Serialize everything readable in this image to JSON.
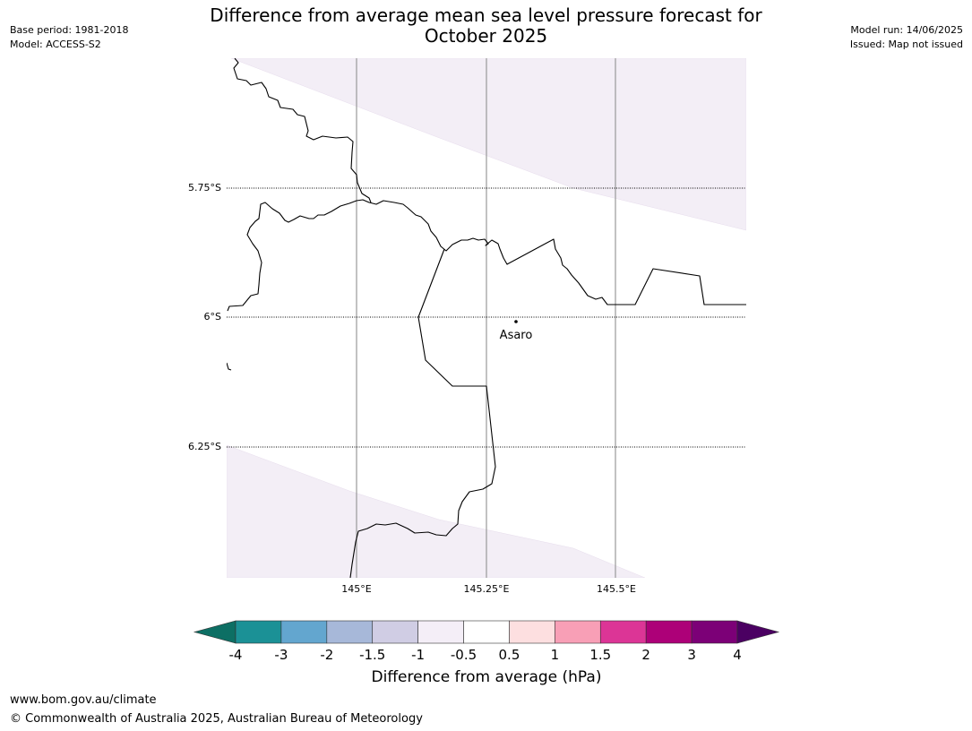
{
  "header": {
    "title_line1": "Difference from average mean sea level pressure forecast for",
    "title_line2": "October 2025",
    "base_period": "Base period: 1981-2018",
    "model": "Model: ACCESS-S2",
    "model_run": "Model run: 14/06/2025",
    "issued": "Issued: Map not issued"
  },
  "map": {
    "lat_labels": [
      "5.75°S",
      "6°S",
      "6.25°S"
    ],
    "lon_labels": [
      "145°E",
      "145.25°E",
      "145.5°E"
    ],
    "place": {
      "name": "Asaro"
    },
    "shading_color": "#f3eef6",
    "grid_color": "#999999"
  },
  "legend": {
    "label": "Difference from average (hPa)",
    "ticks": [
      "-4",
      "-3",
      "-2",
      "-1.5",
      "-1",
      "-0.5",
      "0.5",
      "1",
      "1.5",
      "2",
      "3",
      "4"
    ],
    "colors": [
      "#0d6f64",
      "#1b9196",
      "#63a6cf",
      "#a7b8d9",
      "#d0cde4",
      "#f4eef7",
      "#ffffff",
      "#fddfe0",
      "#f89fb6",
      "#dc3596",
      "#ad0078",
      "#7c0077",
      "#4b0062"
    ]
  },
  "footer": {
    "url": "www.bom.gov.au/climate",
    "copyright": "© Commonwealth of Australia 2025, Australian Bureau of Meteorology"
  }
}
